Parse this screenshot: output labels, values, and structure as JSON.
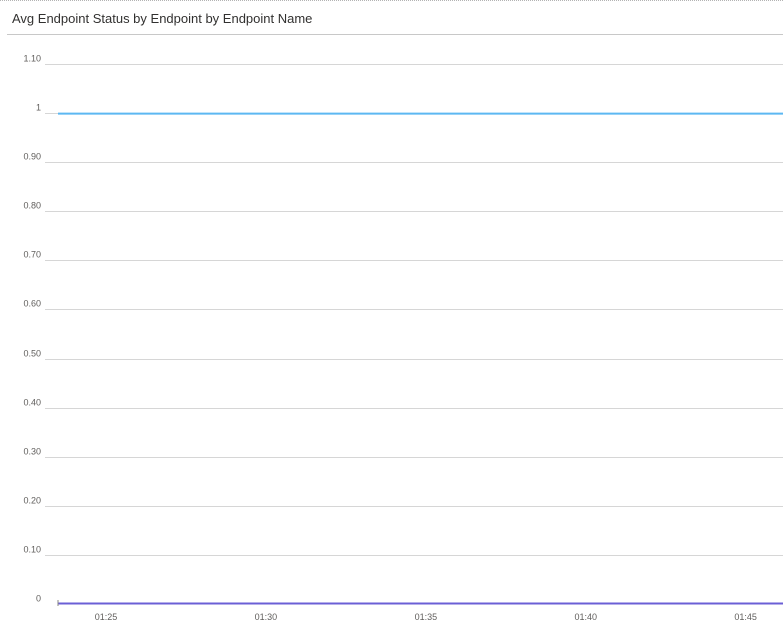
{
  "panel": {
    "title": "Avg Endpoint Status by Endpoint by Endpoint Name"
  },
  "colors": {
    "grid": "#d6d6d6",
    "series_1": "#5cb8f2",
    "series_2": "#6b5fd6",
    "axis_tick": "#8a8886"
  },
  "chart_data": {
    "type": "line",
    "title": "Avg Endpoint Status by Endpoint by Endpoint Name",
    "xlabel": "",
    "ylabel": "",
    "ylim": [
      0,
      1.1
    ],
    "yticks": [
      {
        "value": 1.1,
        "label": "1.10"
      },
      {
        "value": 1.0,
        "label": "1"
      },
      {
        "value": 0.9,
        "label": "0.90"
      },
      {
        "value": 0.8,
        "label": "0.80"
      },
      {
        "value": 0.7,
        "label": "0.70"
      },
      {
        "value": 0.6,
        "label": "0.60"
      },
      {
        "value": 0.5,
        "label": "0.50"
      },
      {
        "value": 0.4,
        "label": "0.40"
      },
      {
        "value": 0.3,
        "label": "0.30"
      },
      {
        "value": 0.2,
        "label": "0.20"
      },
      {
        "value": 0.1,
        "label": "0.10"
      },
      {
        "value": 0.0,
        "label": "0"
      }
    ],
    "xlim": [
      "01:23:30",
      "01:46:10"
    ],
    "xticks": [
      "01:25",
      "01:30",
      "01:35",
      "01:40",
      "01:45"
    ],
    "grid": true,
    "legend": "none",
    "series": [
      {
        "x": [
          "01:23:30",
          "01:46:10"
        ],
        "values": [
          1,
          1
        ],
        "color": "#5cb8f2"
      },
      {
        "x": [
          "01:23:30",
          "01:46:10"
        ],
        "values": [
          0,
          0
        ],
        "color": "#6b5fd6"
      }
    ]
  }
}
